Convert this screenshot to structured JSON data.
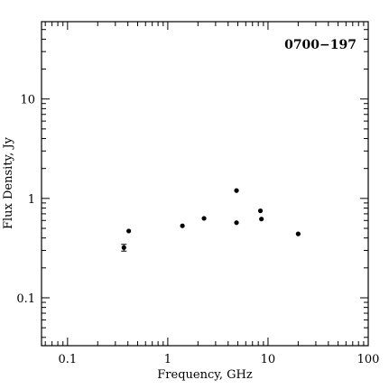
{
  "chart_data": {
    "type": "scatter",
    "title": "0700−197",
    "xlabel": "Frequency, GHz",
    "ylabel": "Flux Density, Jy",
    "xscale": "log",
    "yscale": "log",
    "xlim": [
      0.055,
      100
    ],
    "ylim": [
      0.033,
      60
    ],
    "x_tick_labels": [
      "0.1",
      "1",
      "10",
      "100"
    ],
    "y_tick_labels": [
      "0.1",
      "1",
      "10"
    ],
    "x_tick_values": [
      0.1,
      1,
      10,
      100
    ],
    "y_tick_values": [
      0.1,
      1,
      10
    ],
    "grid": false,
    "legend": "none",
    "title_position": "top-right",
    "marker_color": "#000000",
    "points": [
      {
        "x": 0.365,
        "y": 0.32,
        "yerr": 0.025
      },
      {
        "x": 0.408,
        "y": 0.47
      },
      {
        "x": 1.4,
        "y": 0.53
      },
      {
        "x": 2.3,
        "y": 0.63
      },
      {
        "x": 4.85,
        "y": 1.2
      },
      {
        "x": 4.85,
        "y": 0.57
      },
      {
        "x": 8.4,
        "y": 0.75
      },
      {
        "x": 8.6,
        "y": 0.62
      },
      {
        "x": 20,
        "y": 0.44
      }
    ]
  }
}
